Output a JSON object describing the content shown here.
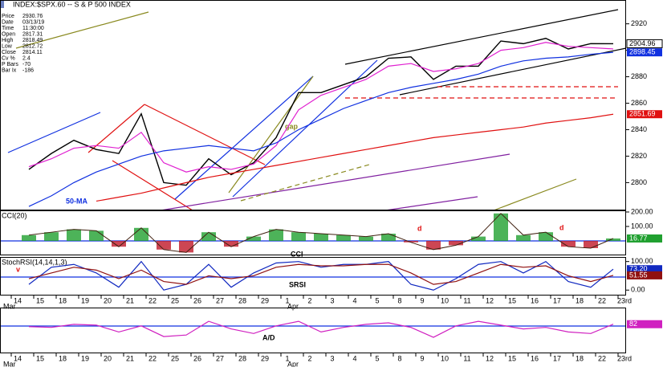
{
  "title": "INDEX:$SPX.60 -- S & P 500 INDEX",
  "info": [
    {
      "label": "Price",
      "value": 2930.76
    },
    {
      "label": "Date",
      "value": "03/13/19"
    },
    {
      "label": "Time",
      "value": "11:30:00"
    },
    {
      "label": "Open",
      "value": 2817.31
    },
    {
      "label": "High",
      "value": 2818.49
    },
    {
      "label": "Low",
      "value": 2812.72
    },
    {
      "label": "Close",
      "value": 2814.11
    },
    {
      "label": "Cv %",
      "value": 2.4
    },
    {
      "label": "P Bars",
      "value": -70
    },
    {
      "label": "Bar Ix",
      "value": -186
    }
  ],
  "months": [
    "Mar",
    "Apr"
  ],
  "chart_data": [
    {
      "type": "line",
      "categories": [
        "14",
        "15",
        "18",
        "19",
        "20",
        "21",
        "22",
        "25",
        "26",
        "27",
        "28",
        "29",
        "1",
        "2",
        "3",
        "4",
        "5",
        "8",
        "9",
        "10",
        "11",
        "12",
        "15",
        "16",
        "17",
        "18",
        "22",
        "23rd"
      ],
      "annotations": [
        "gap",
        "50-MA"
      ],
      "ylim": [
        2779,
        2938
      ],
      "yticks": [
        2800,
        2820,
        2840,
        2860,
        2880,
        2900,
        2920
      ],
      "grid": false,
      "series": [
        {
          "color": "#000000",
          "end_label": true,
          "values": [
            2810,
            2822,
            2832,
            2825,
            2822,
            2852,
            2800,
            2798,
            2818,
            2806,
            2815,
            2834,
            2868,
            2868,
            2874,
            2880,
            2894,
            2895,
            2878,
            2888,
            2888,
            2907,
            2905,
            2909,
            2901,
            2905,
            2904.96,
            null
          ]
        },
        {
          "color": "#e020d0",
          "end_label": false,
          "values": [
            2812,
            2818,
            2826,
            2828,
            2826,
            2838,
            2815,
            2808,
            2812,
            2810,
            2814,
            2828,
            2855,
            2866,
            2872,
            2878,
            2888,
            2890,
            2884,
            2886,
            2890,
            2900,
            2902,
            2906,
            2903,
            2902,
            2901,
            null
          ]
        },
        {
          "name": "50-MA",
          "color": "#1030e0",
          "end_label": true,
          "values": [
            2782,
            2790,
            2800,
            2808,
            2814,
            2820,
            2824,
            2826,
            2828,
            2826,
            2824,
            2830,
            2840,
            2848,
            2856,
            2862,
            2868,
            2872,
            2875,
            2878,
            2882,
            2888,
            2892,
            2894,
            2895,
            2897,
            2898.45,
            null
          ]
        },
        {
          "color": "#e01010",
          "end_label": true,
          "values": [
            null,
            null,
            null,
            2786,
            2789,
            2792,
            2796,
            2800,
            2804,
            2807,
            2810,
            2813,
            2816,
            2819,
            2822,
            2825,
            2828,
            2831,
            2834,
            2836,
            2838,
            2840,
            2842,
            2845,
            2847,
            2849,
            2851.69,
            null
          ]
        }
      ]
    },
    {
      "type": "bar",
      "title": "CCI(20)",
      "annotations": [
        "d",
        "d",
        "CCI"
      ],
      "ylim": [
        -100,
        211
      ],
      "yticks": [
        {
          "value": 100,
          "label": "100.00"
        },
        {
          "value": 200,
          "label": "200.00"
        }
      ],
      "series": [
        {
          "color": "#20a030",
          "negative_color": "#c01828",
          "end_label": true,
          "values": [
            40,
            60,
            80,
            70,
            -40,
            90,
            -60,
            -80,
            60,
            -40,
            30,
            80,
            60,
            50,
            40,
            30,
            50,
            -10,
            -60,
            -30,
            30,
            190,
            40,
            60,
            -40,
            -50,
            16.77,
            null
          ]
        }
      ]
    },
    {
      "type": "line",
      "title": "StochRSI(14,14,1,3)",
      "annotations": [
        "v",
        "SRSI"
      ],
      "ylim": [
        -19,
        116
      ],
      "yticks": [
        {
          "value": 0,
          "label": "0.00"
        },
        {
          "value": 100,
          "label": "100.00"
        }
      ],
      "series": [
        {
          "color": "#1028c0",
          "end_label": true,
          "values": [
            20,
            80,
            90,
            60,
            10,
            100,
            0,
            20,
            90,
            10,
            60,
            95,
            100,
            80,
            90,
            90,
            100,
            20,
            0,
            40,
            90,
            100,
            60,
            100,
            30,
            10,
            73.2,
            null
          ],
          "value_labels": [
            null,
            null,
            null,
            null,
            null,
            null,
            null,
            null,
            null,
            null,
            null,
            null,
            null,
            null,
            null,
            null,
            null,
            null,
            null,
            null,
            null,
            null,
            null,
            null,
            null,
            null,
            "73.20",
            null
          ]
        },
        {
          "color": "#901010",
          "end_label": true,
          "values": [
            40,
            60,
            80,
            70,
            40,
            70,
            30,
            20,
            50,
            40,
            50,
            80,
            90,
            85,
            85,
            90,
            90,
            60,
            20,
            30,
            60,
            90,
            80,
            85,
            50,
            30,
            51.55,
            null
          ]
        }
      ]
    },
    {
      "type": "line",
      "annotations": [
        "A/D"
      ],
      "ylim": [
        -300,
        300
      ],
      "yticks": [],
      "series": [
        {
          "color": "#d020c0",
          "end_label": true,
          "values": [
            50,
            40,
            80,
            70,
            -20,
            60,
            -80,
            -60,
            120,
            20,
            -40,
            60,
            120,
            -20,
            40,
            80,
            100,
            40,
            -90,
            60,
            120,
            70,
            20,
            40,
            -20,
            -40,
            82,
            null
          ]
        }
      ]
    }
  ]
}
